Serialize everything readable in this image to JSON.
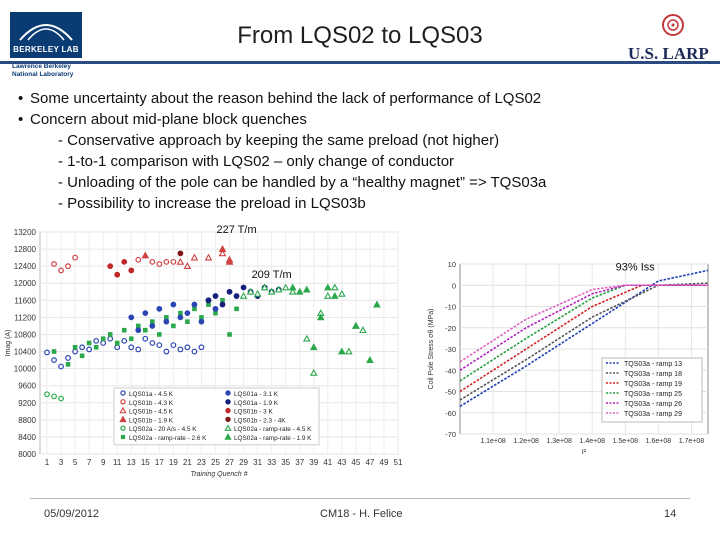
{
  "slide": {
    "title": "From LQS02 to LQS03",
    "logo_left": {
      "name": "BERKELEY LAB",
      "sub1": "Lawrence Berkeley",
      "sub2": "National Laboratory"
    },
    "logo_right": "U.S. LARP",
    "bullets": [
      {
        "text": "Some uncertainty about the reason behind the lack of performance of LQS02",
        "subs": []
      },
      {
        "text": "Concern about mid-plane block quenches",
        "subs": [
          "- Conservative approach by keeping the same preload (not higher)",
          "- 1-to-1 comparison with LQS02 – only change of conductor",
          "- Unloading of the pole can be handled by a “healthy magnet” => TQS03a",
          "- Possibility to increase the preload in LQS03b"
        ]
      }
    ],
    "footer": {
      "date": "05/09/2012",
      "center": "CM18 - H. Felice",
      "page": "14"
    }
  },
  "chart_data": [
    {
      "type": "scatter",
      "xlabel": "Training Quench #",
      "ylabel": "Imag (A)",
      "xlim": [
        0,
        51
      ],
      "ylim": [
        8000,
        13200
      ],
      "xticks": [
        1,
        3,
        5,
        7,
        9,
        11,
        13,
        15,
        17,
        19,
        21,
        23,
        25,
        27,
        29,
        31,
        33,
        35,
        37,
        39,
        41,
        43,
        45,
        47,
        49,
        51
      ],
      "yticks": [
        8000,
        8400,
        8800,
        9200,
        9600,
        10000,
        10400,
        10800,
        11200,
        11600,
        12000,
        12400,
        12800,
        13200
      ],
      "annotations": [
        {
          "text": "227 T/m",
          "x": 28,
          "y": 13180
        },
        {
          "text": "209 T/m",
          "x": 33,
          "y": 12120
        }
      ],
      "series": [
        {
          "name": "LQS01a - 4.5 K",
          "marker": "circle-open",
          "color": "#2b46b3",
          "x": [
            1,
            2,
            3,
            4,
            5,
            6,
            7,
            8,
            9,
            10,
            11,
            12,
            13,
            14,
            15,
            16,
            17,
            18,
            19,
            20,
            21,
            22,
            23
          ],
          "y": [
            10380,
            10200,
            10050,
            10250,
            10400,
            10500,
            10450,
            10650,
            10600,
            10700,
            10500,
            10650,
            10500,
            10450,
            10700,
            10600,
            10550,
            10400,
            10550,
            10450,
            10500,
            10400,
            10500
          ]
        },
        {
          "name": "LQS01b - 4.3 K",
          "marker": "circle-open",
          "color": "#d04040",
          "x": [
            2,
            3,
            4,
            5,
            14,
            16,
            17,
            18,
            19
          ],
          "y": [
            12450,
            12300,
            12400,
            12600,
            12550,
            12500,
            12450,
            12500,
            12500
          ]
        },
        {
          "name": "LQS01b - 4.5 K",
          "marker": "triangle-open",
          "color": "#d04040",
          "x": [
            20,
            21,
            22,
            24,
            26,
            27
          ],
          "y": [
            12500,
            12400,
            12600,
            12600,
            12700,
            12550
          ]
        },
        {
          "name": "LQS01b - 1.9 K",
          "marker": "triangle-filled",
          "color": "#d04040",
          "x": [
            15,
            26,
            27
          ],
          "y": [
            12650,
            12800,
            12500
          ]
        },
        {
          "name": "LQS02a - 20 A/s - 4.5 K",
          "marker": "circle-open",
          "color": "#2aa84a",
          "x": [
            1,
            2,
            3
          ],
          "y": [
            9400,
            9350,
            9300
          ]
        },
        {
          "name": "LQS02a - ramp-rate - 2.6 K",
          "marker": "square-filled",
          "color": "#2aa84a",
          "x": [
            2,
            4,
            5,
            6,
            7,
            8,
            9,
            10,
            11,
            12,
            13,
            14,
            15,
            16,
            17,
            18,
            19,
            20,
            21,
            22,
            23,
            24,
            25,
            26,
            27,
            28
          ],
          "y": [
            10400,
            10100,
            10500,
            10300,
            10600,
            10500,
            10700,
            10800,
            10600,
            10900,
            10700,
            11000,
            10900,
            11100,
            10800,
            11200,
            11000,
            11300,
            11100,
            11400,
            11200,
            11500,
            11300,
            11600,
            10800,
            11400
          ]
        },
        {
          "name": "LQS01a - 3.1 K",
          "marker": "circle-filled",
          "color": "#2b46b3",
          "x": [
            13,
            14,
            15,
            16,
            17,
            18,
            19,
            20,
            21,
            22,
            23,
            24,
            25
          ],
          "y": [
            11200,
            10900,
            11300,
            11000,
            11400,
            11100,
            11500,
            11200,
            11300,
            11500,
            11100,
            11600,
            11400
          ]
        },
        {
          "name": "LQS01a - 1.9 K",
          "marker": "circle-filled",
          "color": "#15207a",
          "x": [
            24,
            25,
            26,
            27,
            28,
            29,
            30,
            31,
            32,
            33,
            34
          ],
          "y": [
            11600,
            11700,
            11500,
            11800,
            11700,
            11900,
            11800,
            11700,
            11900,
            11800,
            11850
          ]
        },
        {
          "name": "LQS01b - 3 K",
          "marker": "circle-filled",
          "color": "#c02828",
          "x": [
            10,
            11,
            12,
            13
          ],
          "y": [
            12400,
            12200,
            12500,
            12300
          ]
        },
        {
          "name": "LQS01b - 2.3 - 4K",
          "marker": "circle-filled",
          "color": "#801818",
          "x": [
            20
          ],
          "y": [
            12700
          ]
        },
        {
          "name": "LQS02a - ramp-rate - 4.5 K",
          "marker": "triangle-open",
          "color": "#2aa84a",
          "x": [
            29,
            30,
            31,
            32,
            33,
            34,
            35,
            36,
            38,
            39,
            40,
            41,
            42,
            43,
            44,
            45,
            46
          ],
          "y": [
            11700,
            11800,
            11750,
            11900,
            11800,
            11850,
            11900,
            11800,
            10700,
            9900,
            11300,
            11700,
            11900,
            11750,
            10400,
            11000,
            10900
          ]
        },
        {
          "name": "LQS02a - ramp-rate - 1.9 K",
          "marker": "triangle-filled",
          "color": "#2aa84a",
          "x": [
            36,
            37,
            38,
            39,
            40,
            41,
            42,
            43,
            45,
            47,
            48
          ],
          "y": [
            11900,
            11800,
            11850,
            10500,
            11200,
            11900,
            11700,
            10400,
            11000,
            10200,
            11500
          ]
        }
      ]
    },
    {
      "type": "line",
      "xlabel": "I²",
      "ylabel": "Coil Pole Stress σθ (MPa)",
      "xlim": [
        100000000.0,
        175000000.0
      ],
      "ylim": [
        -70,
        10
      ],
      "xticks": [
        "1.1e+08",
        "1.2e+08",
        "1.3e+08",
        "1.4e+08",
        "1.5e+08",
        "1.6e+08",
        "1.7e+08"
      ],
      "yticks": [
        10,
        0,
        -10,
        -20,
        -30,
        -40,
        -50,
        -60,
        -70
      ],
      "annotations": [
        {
          "text": "93% Iss",
          "x": 153000000.0,
          "y": 7
        }
      ],
      "series": [
        {
          "name": "TQS03a - ramp 13",
          "color": "#1a3bb5",
          "x": [
            100000000.0,
            120000000.0,
            140000000.0,
            160000000.0,
            175000000.0
          ],
          "y": [
            -57,
            -38,
            -18,
            2,
            7
          ]
        },
        {
          "name": "TQS03a - ramp 18",
          "color": "#555555",
          "x": [
            100000000.0,
            120000000.0,
            140000000.0,
            160000000.0,
            175000000.0
          ],
          "y": [
            -54,
            -35,
            -15,
            0,
            1
          ]
        },
        {
          "name": "TQS03a - ramp 19",
          "color": "#d02020",
          "x": [
            100000000.0,
            120000000.0,
            140000000.0,
            155000000.0,
            175000000.0
          ],
          "y": [
            -50,
            -30,
            -10,
            0,
            0
          ]
        },
        {
          "name": "TQS03a - ramp 25",
          "color": "#22a040",
          "x": [
            100000000.0,
            120000000.0,
            140000000.0,
            150000000.0,
            175000000.0
          ],
          "y": [
            -45,
            -25,
            -6,
            0,
            0
          ]
        },
        {
          "name": "TQS03a - ramp 26",
          "color": "#b020c0",
          "x": [
            100000000.0,
            120000000.0,
            140000000.0,
            150000000.0,
            175000000.0
          ],
          "y": [
            -40,
            -20,
            -4,
            0,
            0
          ]
        },
        {
          "name": "TQS03a - ramp 29",
          "color": "#e060c0",
          "x": [
            100000000.0,
            120000000.0,
            140000000.0,
            150000000.0,
            175000000.0
          ],
          "y": [
            -36,
            -16,
            -2,
            0,
            0
          ]
        }
      ]
    }
  ]
}
